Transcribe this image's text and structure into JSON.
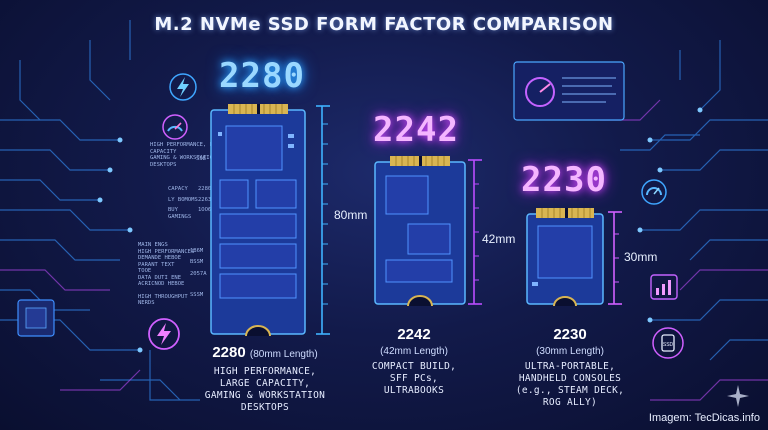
{
  "title": "M.2 NVMe SSD FORM FACTOR COMPARISON",
  "colors": {
    "blue_accent": "#2ea8ff",
    "magenta_accent": "#d54dff",
    "background": "#121a4a"
  },
  "drives": [
    {
      "code": "2280",
      "length_label": "80mm",
      "caption_code": "2280",
      "caption_length": "(80mm Length)",
      "description": [
        "HIGH PERFORMANCE,",
        "LARGE CAPACITY,",
        "GAMING & WORKSTATION",
        "DESKTOPS"
      ]
    },
    {
      "code": "2242",
      "length_label": "42mm",
      "caption_code": "2242",
      "caption_length": "(42mm Length)",
      "description": [
        "COMPACT BUILD,",
        "SFF PCs,",
        "ULTRABOOKS"
      ]
    },
    {
      "code": "2230",
      "length_label": "30mm",
      "caption_code": "2230",
      "caption_length": "(30mm Length)",
      "description": [
        "ULTRA-PORTABLE,",
        "HANDHELD CONSOLES",
        "(e.g., STEAM DECK,",
        "ROG ALLY)"
      ]
    }
  ],
  "spec_labels": [
    "HIGH PERFORMANCE, LARGE",
    "CAPACITY",
    "GAMING & WORKSTATION",
    "DESKTOPS",
    "CAPACY",
    "LY BOMOMS",
    "BUY",
    "GAMINGS",
    "MAIN ENGS",
    "HIGH PERFORMANCES",
    "DEMANDE HEBOE",
    "PARANT TEXT",
    "TOOE",
    "DATA DUTI ENE",
    "ACRICNOD HEBOE",
    "HIGH THROUGHPUT",
    "NERDS"
  ],
  "spec_values": [
    "SSB",
    "2280",
    "2263",
    "1OO6",
    "1B6M",
    "BSSM",
    "2057A",
    "SSSM"
  ],
  "icons": [
    "lightning-icon",
    "speedometer-icon",
    "chip-icon",
    "bar-chart-icon",
    "ssd-icon",
    "sparkle-icon"
  ],
  "credit": "Imagem: TecDicas.info"
}
